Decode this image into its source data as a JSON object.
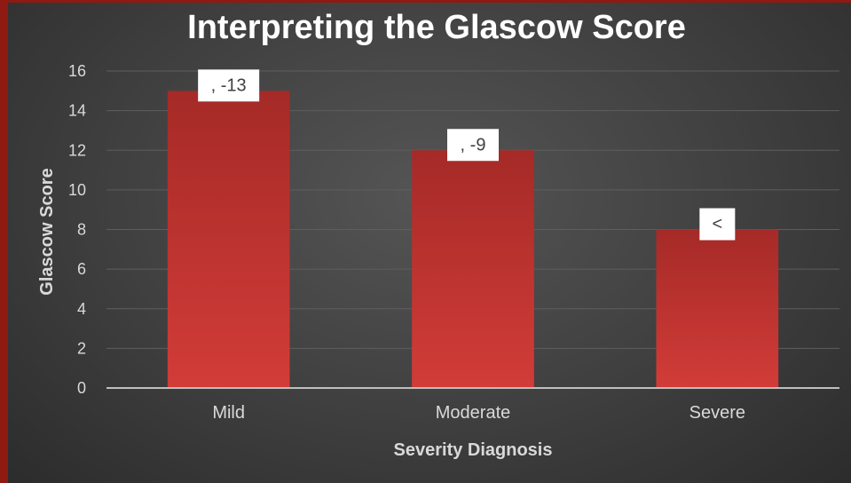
{
  "chart_data": {
    "type": "bar",
    "title": "Interpreting the Glascow Score",
    "xlabel": "Severity Diagnosis",
    "ylabel": "Glascow Score",
    "categories": [
      "Mild",
      "Moderate",
      "Severe"
    ],
    "values": [
      15,
      12,
      8
    ],
    "data_labels": [
      ", -13",
      ", -9",
      "<"
    ],
    "ylim": [
      0,
      16
    ],
    "yticks": [
      0,
      2,
      4,
      6,
      8,
      10,
      12,
      14,
      16
    ],
    "grid": true,
    "legend": "none",
    "colors": {
      "bar_top": "#a52a27",
      "bar_bottom": "#d23c38"
    }
  }
}
